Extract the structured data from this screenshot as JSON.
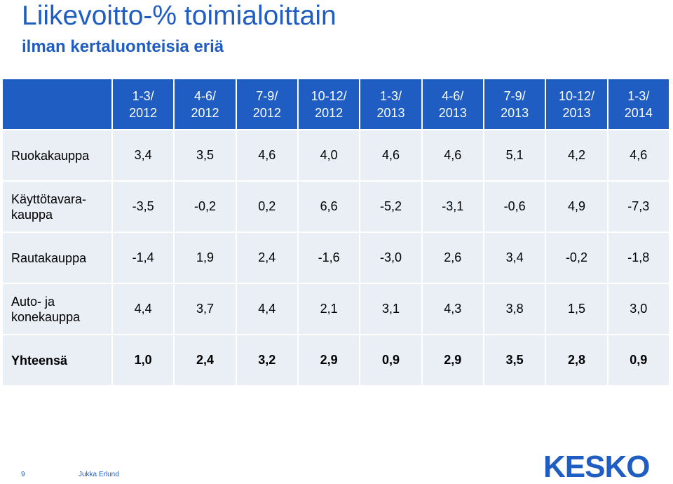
{
  "slide": {
    "title": "Liikevoitto-% toimialoittain",
    "subtitle": "ilman kertaluonteisia eriä"
  },
  "table": {
    "headers": [
      {
        "line1": "1-3/",
        "line2": "2012"
      },
      {
        "line1": "4-6/",
        "line2": "2012"
      },
      {
        "line1": "7-9/",
        "line2": "2012"
      },
      {
        "line1": "10-12/",
        "line2": "2012"
      },
      {
        "line1": "1-3/",
        "line2": "2013"
      },
      {
        "line1": "4-6/",
        "line2": "2013"
      },
      {
        "line1": "7-9/",
        "line2": "2013"
      },
      {
        "line1": "10-12/",
        "line2": "2013"
      },
      {
        "line1": "1-3/",
        "line2": "2014"
      }
    ],
    "rows": [
      {
        "label1": "Ruokakauppa",
        "label2": "",
        "values": [
          "3,4",
          "3,5",
          "4,6",
          "4,0",
          "4,6",
          "4,6",
          "5,1",
          "4,2",
          "4,6"
        ]
      },
      {
        "label1": "Käyttötavara-",
        "label2": "kauppa",
        "values": [
          "-3,5",
          "-0,2",
          "0,2",
          "6,6",
          "-5,2",
          "-3,1",
          "-0,6",
          "4,9",
          "-7,3"
        ]
      },
      {
        "label1": "Rautakauppa",
        "label2": "",
        "values": [
          "-1,4",
          "1,9",
          "2,4",
          "-1,6",
          "-3,0",
          "2,6",
          "3,4",
          "-0,2",
          "-1,8"
        ]
      },
      {
        "label1": "Auto- ja",
        "label2": "konekauppa",
        "values": [
          "4,4",
          "3,7",
          "4,4",
          "2,1",
          "3,1",
          "4,3",
          "3,8",
          "1,5",
          "3,0"
        ]
      },
      {
        "label1": "Yhteensä",
        "label2": "",
        "values": [
          "1,0",
          "2,4",
          "3,2",
          "2,9",
          "0,9",
          "2,9",
          "3,5",
          "2,8",
          "0,9"
        ]
      }
    ]
  },
  "footer": {
    "page_number": "9",
    "author": "Jukka Erlund",
    "logo_text": "KESKO"
  },
  "colors": {
    "brand_blue": "#1f5dc3",
    "cell_background": "#eaeff6"
  }
}
